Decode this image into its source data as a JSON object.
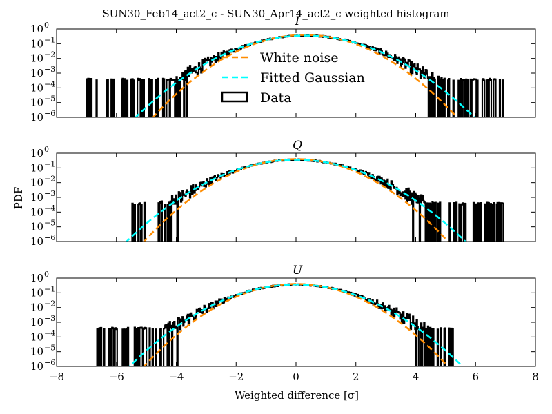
{
  "figure": {
    "suptitle": "SUN30_Feb14_act2_c - SUN30_Apr14_act2_c weighted histogram",
    "xlabel": "Weighted difference [σ]",
    "ylabel": "PDF"
  },
  "legend": {
    "location": "upper-center-in-first-panel",
    "items": [
      {
        "label": "White noise",
        "color": "#ff8c00",
        "style": "dashed"
      },
      {
        "label": "Fitted Gaussian",
        "color": "#00ffff",
        "style": "dashed"
      },
      {
        "label": "Data",
        "color": "#000000",
        "style": "box"
      }
    ]
  },
  "chart_data": [
    {
      "type": "line",
      "title": "I",
      "xlim": [
        -8,
        8
      ],
      "ylim_log10": [
        -6,
        0
      ],
      "yscale": "log",
      "xticks": [
        "−8",
        "−6",
        "−4",
        "−2",
        "0",
        "2",
        "4",
        "6",
        "8"
      ],
      "yticks": [
        "10^0",
        "10^-1",
        "10^-2",
        "10^-3",
        "10^-4",
        "10^-5",
        "10^-6"
      ],
      "series": [
        {
          "name": "White noise",
          "kind": "gaussian",
          "mean": 0.3,
          "sigma": 1.0,
          "color": "#ff8c00"
        },
        {
          "name": "Fitted Gaussian",
          "kind": "gaussian",
          "mean": 0.3,
          "sigma": 1.12,
          "color": "#00ffff"
        },
        {
          "name": "Data",
          "kind": "histogram",
          "color": "#000000",
          "support": [
            -7.0,
            7.0
          ],
          "noise_floor_log10": -3.5
        }
      ]
    },
    {
      "type": "line",
      "title": "Q",
      "xlim": [
        -8,
        8
      ],
      "ylim_log10": [
        -6,
        0
      ],
      "yscale": "log",
      "xticks": [],
      "yticks": [
        "10^0",
        "10^-1",
        "10^-2",
        "10^-3",
        "10^-4",
        "10^-5",
        "10^-6"
      ],
      "series": [
        {
          "name": "White noise",
          "kind": "gaussian",
          "mean": 0.0,
          "sigma": 1.0,
          "color": "#ff8c00"
        },
        {
          "name": "Fitted Gaussian",
          "kind": "gaussian",
          "mean": 0.0,
          "sigma": 1.12,
          "color": "#00ffff"
        },
        {
          "name": "Data",
          "kind": "histogram",
          "color": "#000000",
          "support": [
            -5.5,
            7.0
          ],
          "noise_floor_log10": -3.5
        }
      ]
    },
    {
      "type": "line",
      "title": "U",
      "xlim": [
        -8,
        8
      ],
      "ylim_log10": [
        -6,
        0
      ],
      "yscale": "log",
      "xticks": [
        "−8",
        "−6",
        "−4",
        "−2",
        "0",
        "2",
        "4",
        "6",
        "8"
      ],
      "yticks": [
        "10^0",
        "10^-1",
        "10^-2",
        "10^-3",
        "10^-4",
        "10^-5",
        "10^-6"
      ],
      "series": [
        {
          "name": "White noise",
          "kind": "gaussian",
          "mean": 0.0,
          "sigma": 1.0,
          "color": "#ff8c00"
        },
        {
          "name": "Fitted Gaussian",
          "kind": "gaussian",
          "mean": 0.0,
          "sigma": 1.1,
          "color": "#00ffff"
        },
        {
          "name": "Data",
          "kind": "histogram",
          "color": "#000000",
          "support": [
            -6.7,
            5.3
          ],
          "noise_floor_log10": -3.5
        }
      ]
    }
  ]
}
